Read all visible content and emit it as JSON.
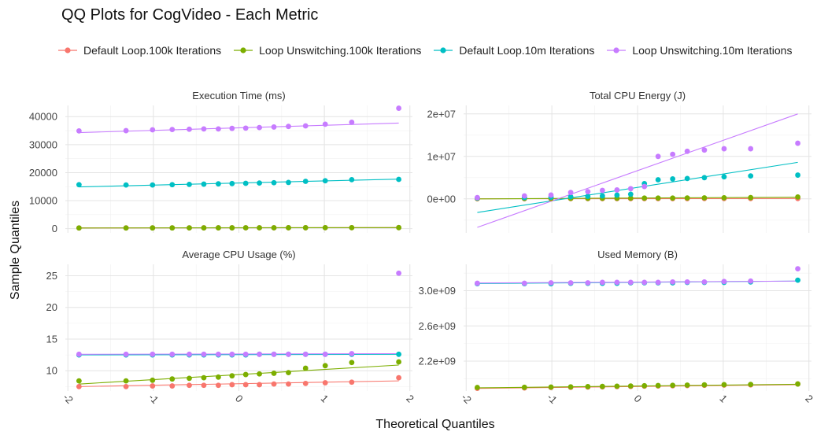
{
  "title": "QQ Plots for CogVideo - Each Metric",
  "legend": [
    {
      "label": "Default Loop.100k Iterations",
      "color": "#F8766D"
    },
    {
      "label": "Loop Unswitching.100k Iterations",
      "color": "#7CAE00"
    },
    {
      "label": "Default Loop.10m Iterations",
      "color": "#00BFC4"
    },
    {
      "label": "Loop Unswitching.10m Iterations",
      "color": "#C77CFF"
    }
  ],
  "chart_data": {
    "type": "scatter",
    "subtype": "qq-facets",
    "xlabel": "Theoretical Quantiles",
    "ylabel": "Sample Quantiles",
    "x_ticks": [
      "-2",
      "-1",
      "0",
      "1",
      "2"
    ],
    "x": [
      -1.87,
      -1.32,
      -1.01,
      -0.78,
      -0.58,
      -0.41,
      -0.24,
      -0.08,
      0.08,
      0.24,
      0.41,
      0.58,
      0.78,
      1.01,
      1.32,
      1.87
    ],
    "series_names": [
      "Default Loop.100k Iterations",
      "Loop Unswitching.100k Iterations",
      "Default Loop.10m Iterations",
      "Loop Unswitching.10m Iterations"
    ],
    "series_colors": [
      "#F8766D",
      "#7CAE00",
      "#00BFC4",
      "#C77CFF"
    ],
    "grid": true,
    "legend_position": "top",
    "panels": [
      {
        "title": "Execution Time (ms)",
        "ylim": [
          -1500,
          44000
        ],
        "y_ticks": [
          {
            "value": 0,
            "label": "0"
          },
          {
            "value": 10000,
            "label": "10000"
          },
          {
            "value": 20000,
            "label": "20000"
          },
          {
            "value": 30000,
            "label": "30000"
          },
          {
            "value": 40000,
            "label": "40000"
          }
        ],
        "series": [
          {
            "values": [
              260,
              270,
              280,
              290,
              300,
              305,
              310,
              315,
              320,
              325,
              330,
              340,
              350,
              360,
              370,
              390
            ],
            "line": [
              [
                -1.87,
                270
              ],
              [
                1.87,
                370
              ]
            ]
          },
          {
            "values": [
              250,
              260,
              270,
              280,
              290,
              300,
              305,
              310,
              320,
              325,
              330,
              340,
              350,
              360,
              370,
              380
            ],
            "line": [
              [
                -1.87,
                250
              ],
              [
                1.87,
                370
              ]
            ]
          },
          {
            "values": [
              15700,
              15600,
              15600,
              15700,
              15800,
              15900,
              16000,
              16100,
              16200,
              16300,
              16400,
              16500,
              16900,
              17100,
              17500,
              17600
            ],
            "line": [
              [
                -1.87,
                14900
              ],
              [
                1.87,
                17700
              ]
            ]
          },
          {
            "values": [
              34900,
              35000,
              35300,
              35400,
              35500,
              35600,
              35600,
              35800,
              35900,
              36100,
              36300,
              36500,
              36700,
              37300,
              38000,
              43000
            ],
            "line": [
              [
                -1.87,
                34300
              ],
              [
                1.87,
                37700
              ]
            ]
          }
        ]
      },
      {
        "title": "Total CPU Energy (J)",
        "ylim": [
          -8000000,
          22000000
        ],
        "y_ticks": [
          {
            "value": 0,
            "label": "0e+00"
          },
          {
            "value": 10000000,
            "label": "1e+07"
          },
          {
            "value": 20000000,
            "label": "2e+07"
          }
        ],
        "series": [
          {
            "values": [
              40000,
              45000,
              48000,
              50000,
              52000,
              55000,
              58000,
              60000,
              62000,
              65000,
              68000,
              70000,
              75000,
              80000,
              85000,
              90000
            ],
            "line": [
              [
                -1.87,
                30000
              ],
              [
                1.87,
                90000
              ]
            ]
          },
          {
            "values": [
              100000,
              110000,
              120000,
              130000,
              140000,
              150000,
              160000,
              170000,
              180000,
              190000,
              200000,
              220000,
              240000,
              260000,
              300000,
              450000
            ],
            "line": [
              [
                -1.87,
                0
              ],
              [
                1.87,
                400000
              ]
            ]
          },
          {
            "values": [
              200000,
              300000,
              400000,
              500000,
              600000,
              700000,
              900000,
              1100000,
              3600000,
              4500000,
              4700000,
              4800000,
              5000000,
              5200000,
              5400000,
              5600000
            ],
            "line": [
              [
                -1.87,
                -3200000
              ],
              [
                1.87,
                8600000
              ]
            ]
          },
          {
            "values": [
              300000,
              700000,
              900000,
              1500000,
              1700000,
              2000000,
              2100000,
              2400000,
              2900000,
              10000000,
              10500000,
              11200000,
              11500000,
              11800000,
              11800000,
              13100000
            ],
            "line": [
              [
                -1.87,
                -6700000
              ],
              [
                1.87,
                20000000
              ]
            ]
          }
        ]
      },
      {
        "title": "Average CPU Usage (%)",
        "ylim": [
          6.8,
          26.8
        ],
        "y_ticks": [
          {
            "value": 10,
            "label": "10"
          },
          {
            "value": 15,
            "label": "15"
          },
          {
            "value": 20,
            "label": "20"
          },
          {
            "value": 25,
            "label": "25"
          }
        ],
        "series": [
          {
            "values": [
              7.5,
              7.5,
              7.6,
              7.6,
              7.7,
              7.7,
              7.7,
              7.8,
              7.8,
              7.8,
              7.9,
              7.9,
              8.0,
              8.1,
              8.2,
              8.9
            ],
            "line": [
              [
                -1.87,
                7.5
              ],
              [
                1.87,
                8.4
              ]
            ]
          },
          {
            "values": [
              8.4,
              8.4,
              8.5,
              8.7,
              8.8,
              8.9,
              9.0,
              9.2,
              9.4,
              9.5,
              9.6,
              9.7,
              10.4,
              10.8,
              11.3,
              11.4
            ],
            "line": [
              [
                -1.87,
                7.9
              ],
              [
                1.87,
                10.9
              ]
            ]
          },
          {
            "values": [
              12.5,
              12.5,
              12.5,
              12.5,
              12.5,
              12.5,
              12.5,
              12.5,
              12.5,
              12.6,
              12.6,
              12.6,
              12.6,
              12.6,
              12.6,
              12.6
            ],
            "line": [
              [
                -1.87,
                12.5
              ],
              [
                1.87,
                12.6
              ]
            ]
          },
          {
            "values": [
              12.6,
              12.6,
              12.6,
              12.6,
              12.6,
              12.6,
              12.6,
              12.6,
              12.6,
              12.6,
              12.6,
              12.6,
              12.6,
              12.6,
              12.7,
              25.4
            ],
            "line": [
              [
                -1.87,
                12.6
              ],
              [
                1.87,
                12.7
              ]
            ]
          }
        ]
      },
      {
        "title": "Used Memory (B)",
        "ylim": [
          1860000000,
          3300000000
        ],
        "y_ticks": [
          {
            "value": 2200000000,
            "label": "2.2e+09"
          },
          {
            "value": 2600000000,
            "label": "2.6e+09"
          },
          {
            "value": 3000000000,
            "label": "3.0e+09"
          }
        ],
        "series": [
          {
            "values": [
              1890000000,
              1895000000,
              1900000000,
              1902000000,
              1905000000,
              1907000000,
              1910000000,
              1912000000,
              1915000000,
              1917000000,
              1920000000,
              1922000000,
              1925000000,
              1927000000,
              1930000000,
              1940000000
            ],
            "line": [
              [
                -1.87,
                1890000000
              ],
              [
                1.87,
                1932000000
              ]
            ]
          },
          {
            "values": [
              1900000000,
              1902000000,
              1905000000,
              1907000000,
              1910000000,
              1912000000,
              1915000000,
              1917000000,
              1920000000,
              1922000000,
              1925000000,
              1927000000,
              1930000000,
              1932000000,
              1935000000,
              1940000000
            ],
            "line": [
              [
                -1.87,
                1896000000
              ],
              [
                1.87,
                1937000000
              ]
            ]
          },
          {
            "values": [
              3080000000,
              3080000000,
              3080000000,
              3085000000,
              3085000000,
              3085000000,
              3085000000,
              3090000000,
              3090000000,
              3090000000,
              3090000000,
              3095000000,
              3095000000,
              3095000000,
              3100000000,
              3120000000
            ],
            "line": [
              [
                -1.87,
                3082000000
              ],
              [
                1.87,
                3110000000
              ]
            ]
          },
          {
            "values": [
              3085000000,
              3085000000,
              3090000000,
              3090000000,
              3090000000,
              3095000000,
              3095000000,
              3095000000,
              3095000000,
              3095000000,
              3100000000,
              3100000000,
              3100000000,
              3105000000,
              3110000000,
              3250000000
            ],
            "line": [
              [
                -1.87,
                3088000000
              ],
              [
                1.87,
                3110000000
              ]
            ]
          }
        ]
      }
    ]
  }
}
